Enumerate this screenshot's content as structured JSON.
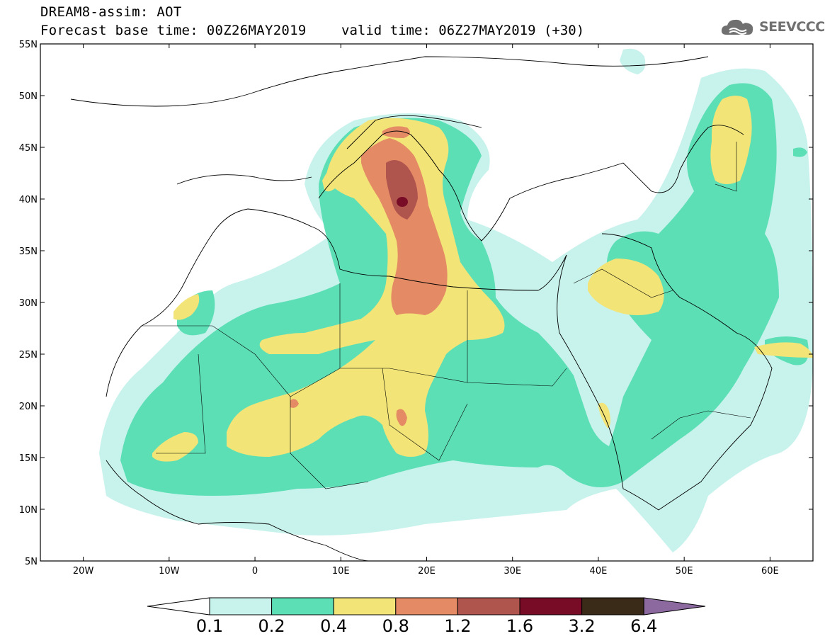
{
  "header": {
    "title_line1": "DREAM8-assim: AOT",
    "title_line2": "Forecast base time: 00Z26MAY2019",
    "valid_time": "valid time: 06Z27MAY2019 (+30)",
    "logo_text": "SEEVCCC"
  },
  "map": {
    "projection": "lat-lon",
    "lon_range": [
      -25,
      65
    ],
    "lat_range": [
      5,
      55
    ],
    "lat_ticks": [
      "55N",
      "50N",
      "45N",
      "40N",
      "35N",
      "30N",
      "25N",
      "20N",
      "15N",
      "10N",
      "5N"
    ],
    "lon_ticks": [
      "20W",
      "10W",
      "0",
      "10E",
      "20E",
      "30E",
      "40E",
      "50E",
      "60E"
    ],
    "variable": "Aerosol Optical Thickness"
  },
  "colorbar": {
    "levels": [
      "0.1",
      "0.2",
      "0.4",
      "0.8",
      "1.2",
      "1.6",
      "3.2",
      "6.4"
    ],
    "colors": [
      "#c8f2ec",
      "#5ddfb6",
      "#f2e477",
      "#e48a64",
      "#b0544e",
      "#780c26",
      "#3a2a18",
      "#8c6aa0"
    ]
  }
}
